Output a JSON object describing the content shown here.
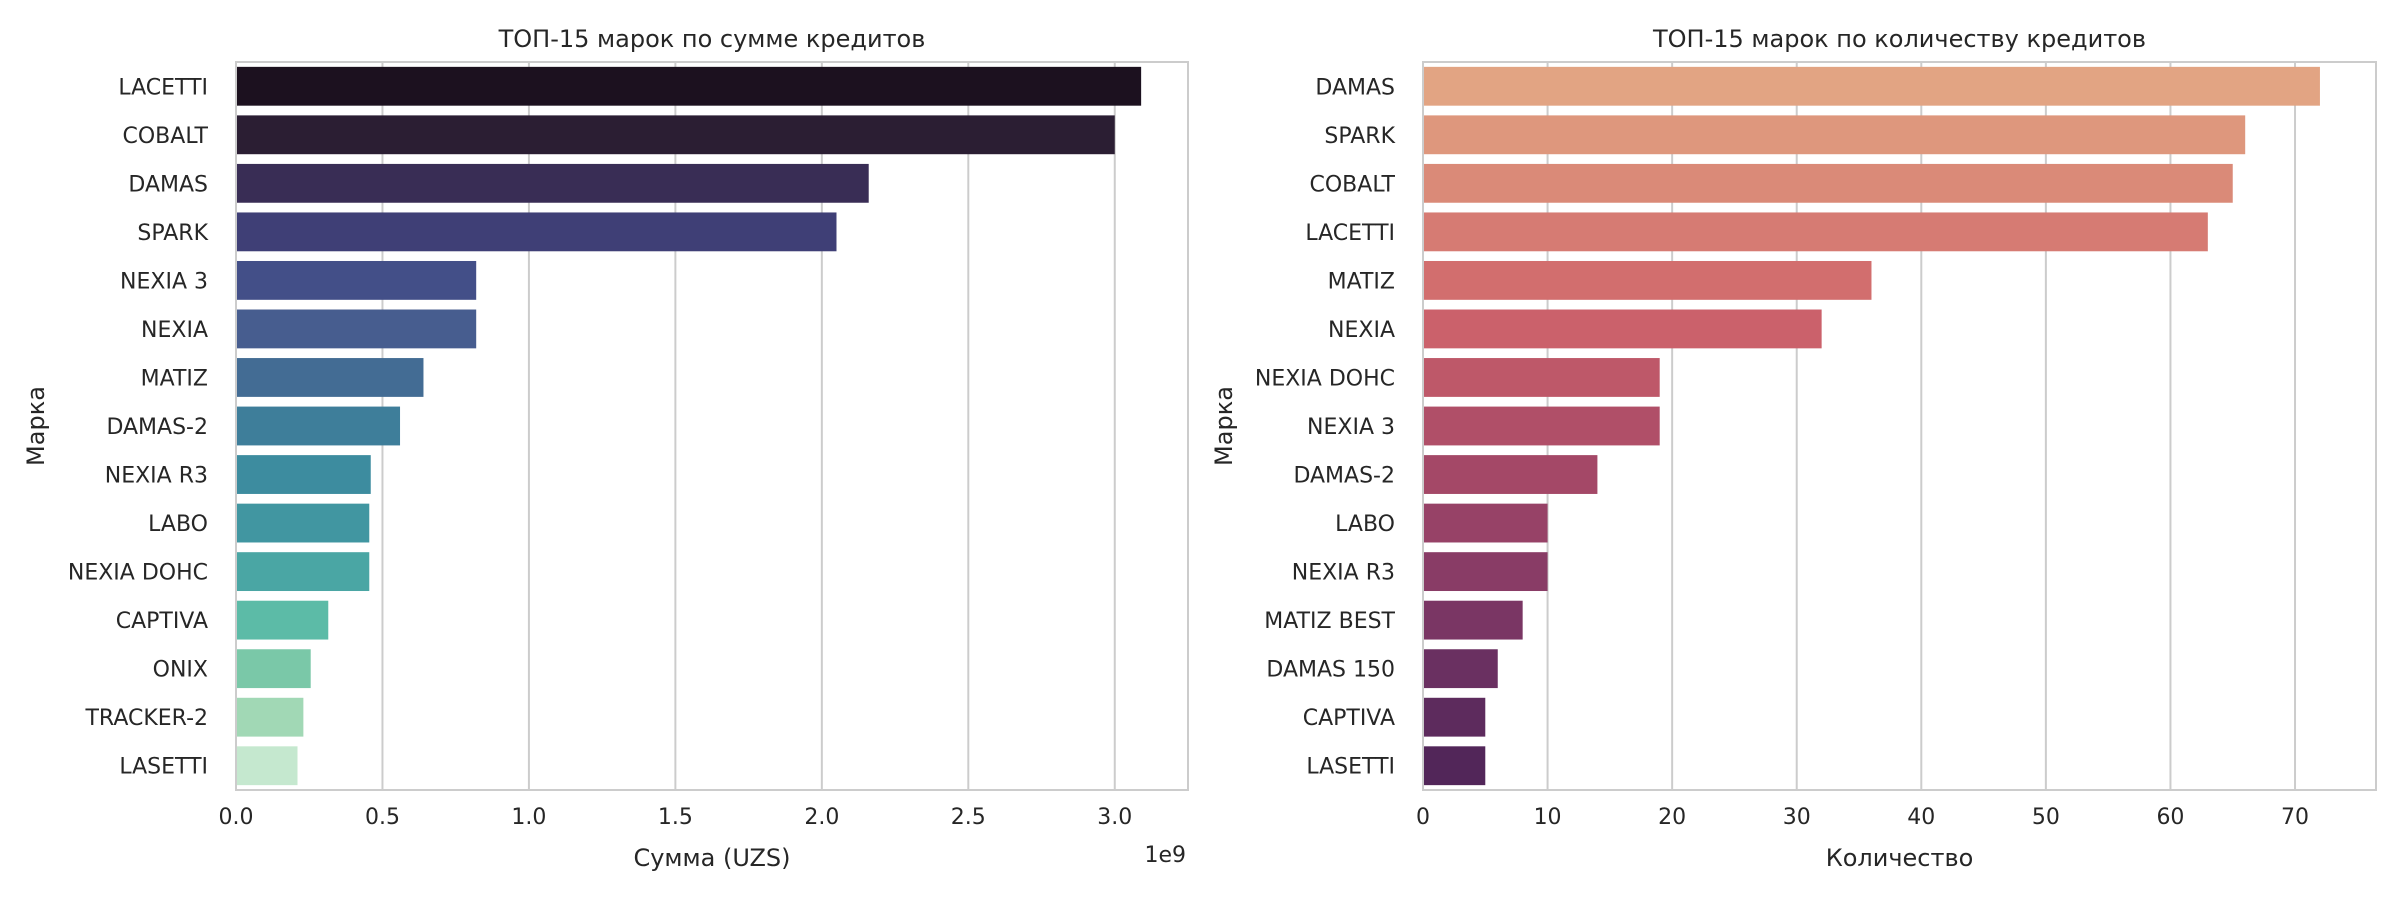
{
  "chart_data": [
    {
      "type": "bar",
      "orientation": "horizontal",
      "title": "ТОП-15 марок по сумме кредитов",
      "xlabel": "Сумма (UZS)",
      "ylabel": "Марка",
      "x_offset_label": "1e9",
      "xlim": [
        0,
        3.25
      ],
      "xticks": [
        "0.0",
        "0.5",
        "1.0",
        "1.5",
        "2.0",
        "2.5",
        "3.0"
      ],
      "xtick_values": [
        0,
        0.5,
        1.0,
        1.5,
        2.0,
        2.5,
        3.0
      ],
      "grid": true,
      "categories": [
        "LACETTI",
        "COBALT",
        "DAMAS",
        "SPARK",
        "NEXIA 3",
        "NEXIA",
        "MATIZ",
        "DAMAS-2",
        "NEXIA R3",
        "LABO",
        "NEXIA DOHC",
        "CAPTIVA",
        "ONIX",
        "TRACKER-2",
        "LASETTI"
      ],
      "values": [
        3.09,
        3.0,
        2.16,
        2.05,
        0.82,
        0.82,
        0.64,
        0.56,
        0.46,
        0.455,
        0.455,
        0.315,
        0.255,
        0.23,
        0.21
      ],
      "value_scale": 1000000000,
      "colors": [
        "#1c111f",
        "#2b1e33",
        "#392d55",
        "#3f3f76",
        "#434f88",
        "#475d8f",
        "#436c94",
        "#3e7e9a",
        "#3d8c9f",
        "#4196a1",
        "#4aa6a4",
        "#5cbba7",
        "#7ac8a8",
        "#a1d8b5",
        "#c5e8cf"
      ]
    },
    {
      "type": "bar",
      "orientation": "horizontal",
      "title": "ТОП-15 марок по количеству кредитов",
      "xlabel": "Количество",
      "ylabel": "Марка",
      "xlim": [
        0,
        76.5
      ],
      "xticks": [
        "0",
        "10",
        "20",
        "30",
        "40",
        "50",
        "60",
        "70"
      ],
      "xtick_values": [
        0,
        10,
        20,
        30,
        40,
        50,
        60,
        70
      ],
      "grid": true,
      "categories": [
        "DAMAS",
        "SPARK",
        "COBALT",
        "LACETTI",
        "MATIZ",
        "NEXIA",
        "NEXIA DOHC",
        "NEXIA 3",
        "DAMAS-2",
        "LABO",
        "NEXIA R3",
        "MATIZ BEST",
        "DAMAS 150",
        "CAPTIVA",
        "LASETTI"
      ],
      "values": [
        72,
        66,
        65,
        63,
        36,
        32,
        19,
        19,
        14,
        10,
        10,
        8,
        6,
        5,
        5
      ],
      "colors": [
        "#e2a483",
        "#de977d",
        "#da8a78",
        "#d67b73",
        "#d26e6e",
        "#cb616b",
        "#be5869",
        "#b04f68",
        "#a44867",
        "#974267",
        "#893c66",
        "#7a3664",
        "#6a3061",
        "#5d2b5d",
        "#522659"
      ]
    }
  ]
}
